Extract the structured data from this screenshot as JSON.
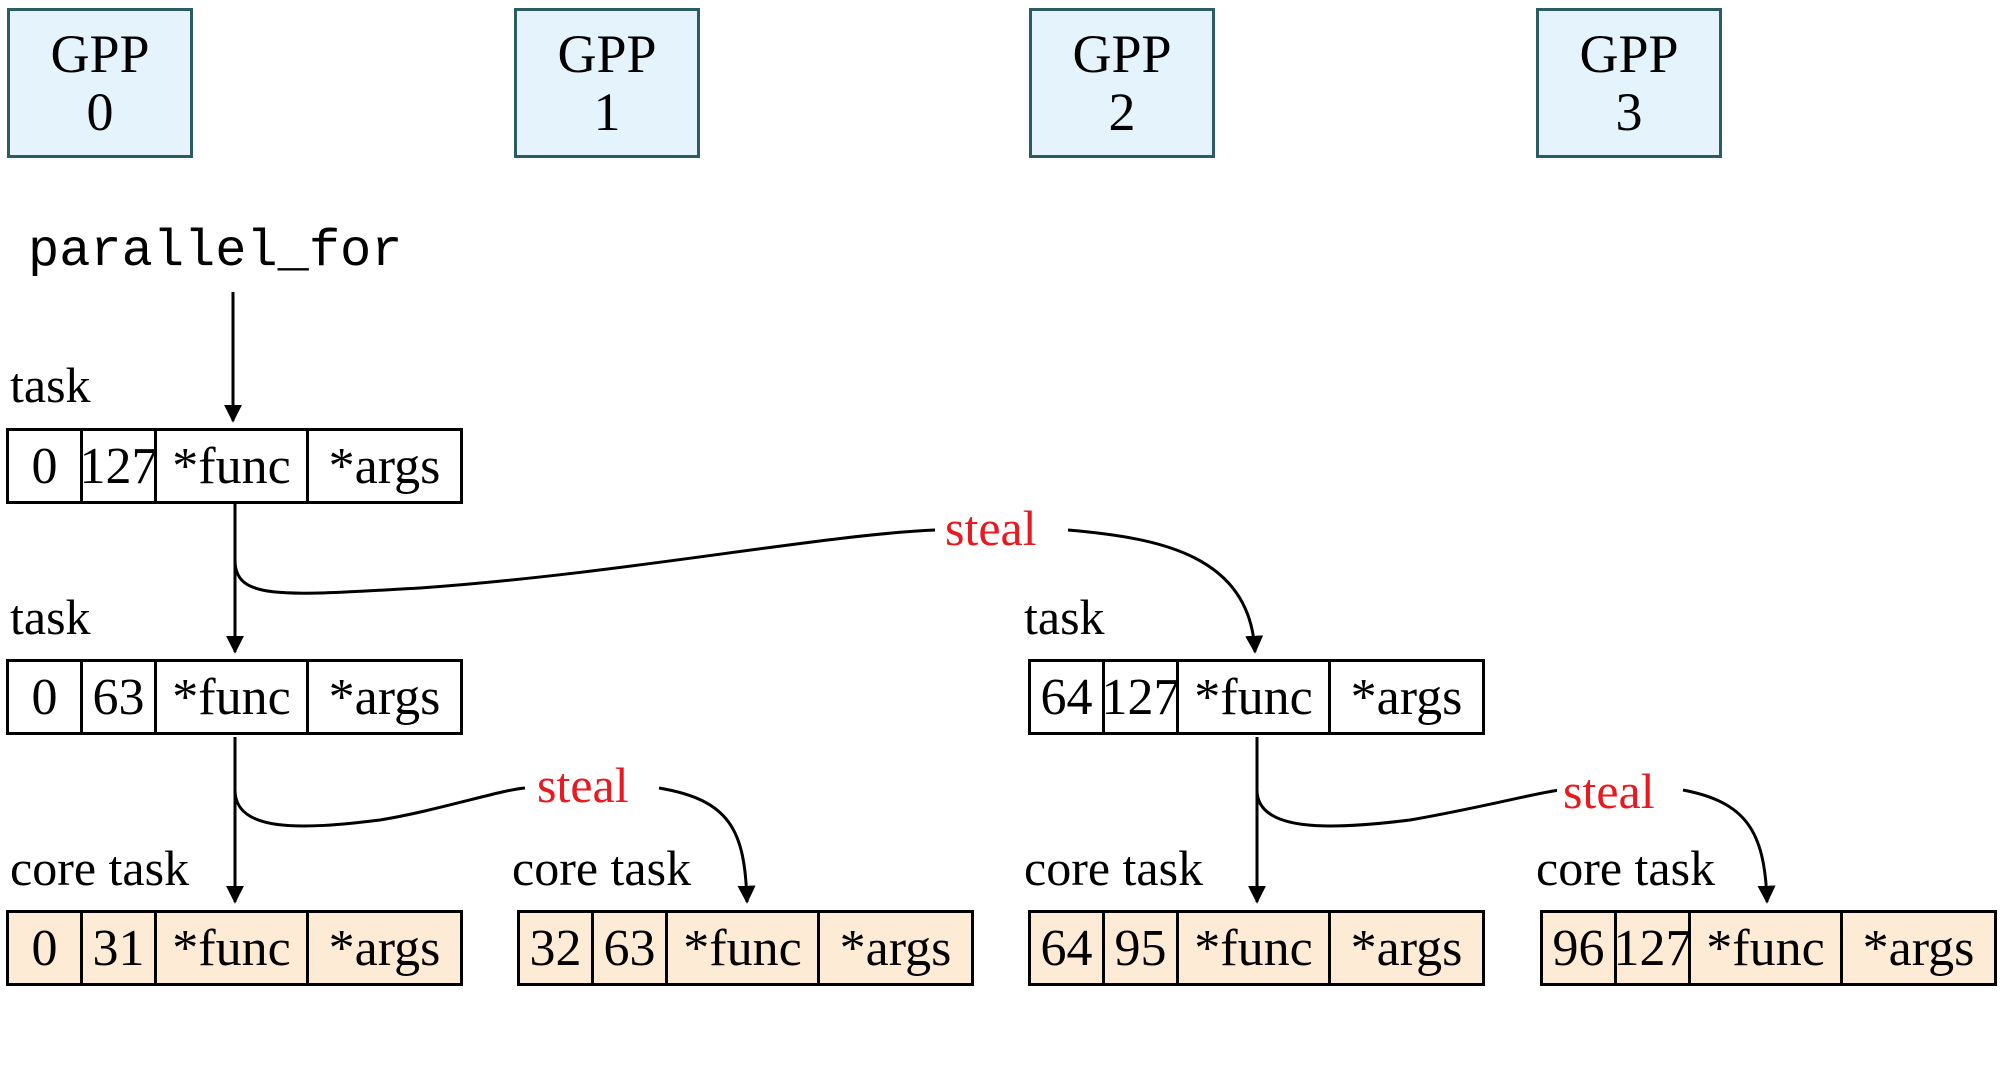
{
  "gpps": [
    {
      "title": "GPP",
      "id": "0"
    },
    {
      "title": "GPP",
      "id": "1"
    },
    {
      "title": "GPP",
      "id": "2"
    },
    {
      "title": "GPP",
      "id": "3"
    }
  ],
  "entry": "parallel_for",
  "steal_label": "steal",
  "task_label": "task",
  "core_task_label": "core task",
  "tasks": {
    "root": {
      "lo": "0",
      "hi": "127",
      "func": "*func",
      "args": "*args"
    },
    "left": {
      "lo": "0",
      "hi": "63",
      "func": "*func",
      "args": "*args"
    },
    "right": {
      "lo": "64",
      "hi": "127",
      "func": "*func",
      "args": "*args"
    },
    "core0": {
      "lo": "0",
      "hi": "31",
      "func": "*func",
      "args": "*args"
    },
    "core1": {
      "lo": "32",
      "hi": "63",
      "func": "*func",
      "args": "*args"
    },
    "core2": {
      "lo": "64",
      "hi": "95",
      "func": "*func",
      "args": "*args"
    },
    "core3": {
      "lo": "96",
      "hi": "127",
      "func": "*func",
      "args": "*args"
    }
  },
  "colors": {
    "gpp_fill": "#e5f4fc",
    "gpp_border": "#2b5b63",
    "core_fill": "#fdebd6",
    "steal": "#e8191f"
  }
}
